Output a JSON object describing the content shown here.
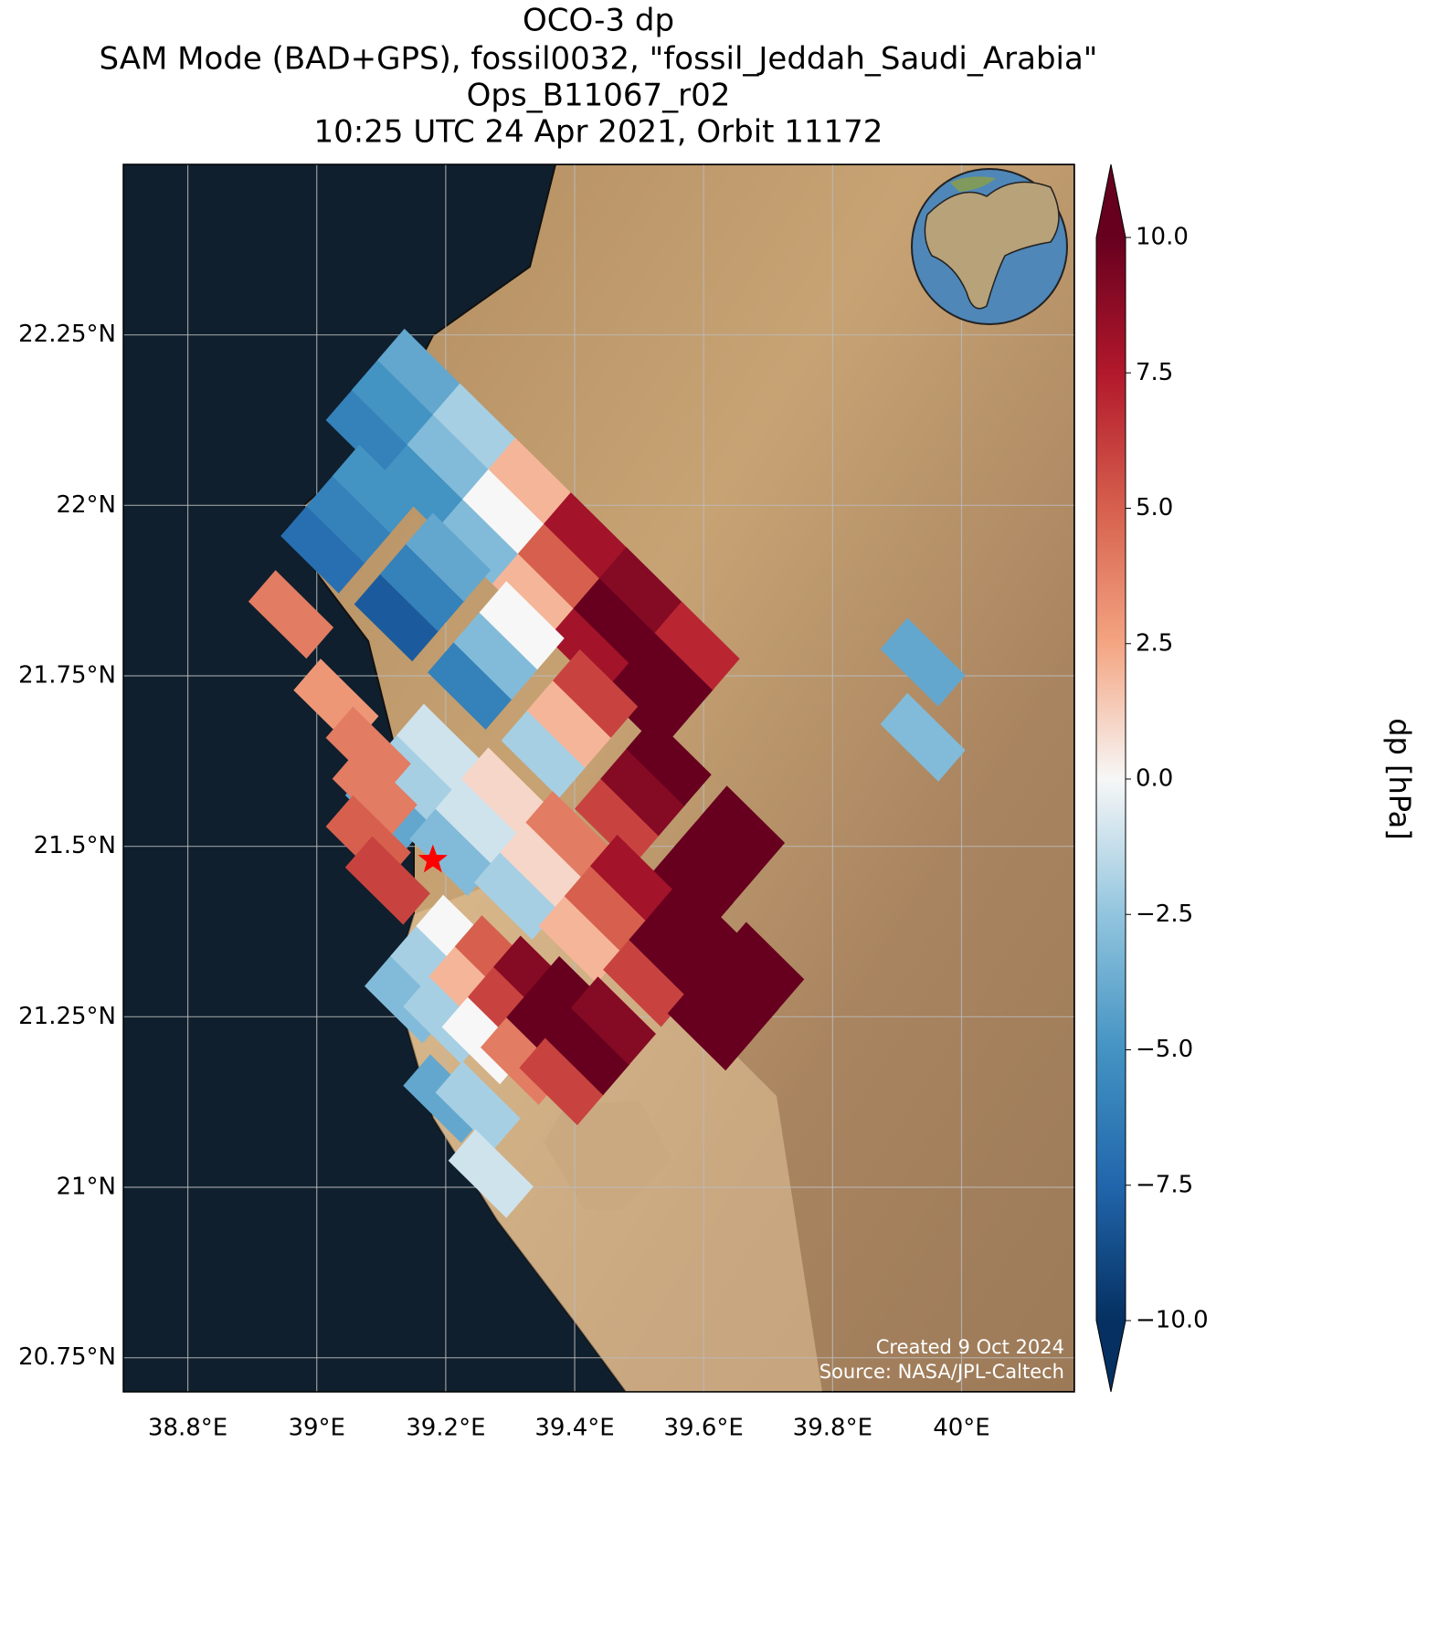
{
  "chart_data": {
    "type": "map",
    "title": [
      "OCO-3 dp",
      "SAM Mode (BAD+GPS), fossil0032, \"fossil_Jeddah_Saudi_Arabia\"",
      "Ops_B11067_r02",
      "10:25 UTC 24 Apr 2021, Orbit 11172"
    ],
    "xlim": [
      38.7,
      40.175
    ],
    "ylim": [
      20.7,
      22.5
    ],
    "grid": true,
    "xticks": [
      {
        "value": 38.8,
        "label": "38.8°E"
      },
      {
        "value": 39,
        "label": "39°E"
      },
      {
        "value": 39.2,
        "label": "39.2°E"
      },
      {
        "value": 39.4,
        "label": "39.4°E"
      },
      {
        "value": 39.6,
        "label": "39.6°E"
      },
      {
        "value": 39.8,
        "label": "39.8°E"
      },
      {
        "value": 40,
        "label": "40°E"
      }
    ],
    "yticks": [
      {
        "value": 20.75,
        "label": "20.75°N"
      },
      {
        "value": 21,
        "label": "21°N"
      },
      {
        "value": 21.25,
        "label": "21.25°N"
      },
      {
        "value": 21.5,
        "label": "21.5°N"
      },
      {
        "value": 21.75,
        "label": "21.75°N"
      },
      {
        "value": 22,
        "label": "22°N"
      },
      {
        "value": 22.25,
        "label": "22.25°N"
      }
    ],
    "colorbar": {
      "label": "dp [hPa]",
      "clim": [
        -10,
        10
      ],
      "colors": [
        "#053061",
        "#2166ac",
        "#4393c3",
        "#92c5de",
        "#f7f7f7",
        "#f4a582",
        "#d6604d",
        "#b2182b",
        "#67001f"
      ],
      "ticks": [
        {
          "value": -10,
          "label": "−10.0"
        },
        {
          "value": -7.5,
          "label": "−7.5"
        },
        {
          "value": -5,
          "label": "−5.0"
        },
        {
          "value": -2.5,
          "label": "−2.5"
        },
        {
          "value": 0,
          "label": "0.0"
        },
        {
          "value": 2.5,
          "label": "2.5"
        },
        {
          "value": 5,
          "label": "5.0"
        },
        {
          "value": 7.5,
          "label": "7.5"
        },
        {
          "value": 10,
          "label": "10.0"
        }
      ]
    },
    "site": {
      "lon": 39.18,
      "lat": 21.48
    },
    "footprints": [
      {
        "lon": 39.08,
        "lat": 22.106,
        "dp": -6
      },
      {
        "lon": 39.12,
        "lat": 22.15,
        "dp": -5
      },
      {
        "lon": 39.16,
        "lat": 22.194,
        "dp": -4
      },
      {
        "lon": 39.166,
        "lat": 22.026,
        "dp": -5
      },
      {
        "lon": 39.206,
        "lat": 22.07,
        "dp": -3
      },
      {
        "lon": 39.246,
        "lat": 22.114,
        "dp": -2
      },
      {
        "lon": 39.252,
        "lat": 21.946,
        "dp": -3
      },
      {
        "lon": 39.292,
        "lat": 21.99,
        "dp": 0
      },
      {
        "lon": 39.332,
        "lat": 22.034,
        "dp": 2
      },
      {
        "lon": 39.338,
        "lat": 21.866,
        "dp": 2
      },
      {
        "lon": 39.378,
        "lat": 21.91,
        "dp": 5
      },
      {
        "lon": 39.418,
        "lat": 21.954,
        "dp": 8
      },
      {
        "lon": 39.424,
        "lat": 21.786,
        "dp": 8
      },
      {
        "lon": 39.464,
        "lat": 21.83,
        "dp": 10
      },
      {
        "lon": 39.504,
        "lat": 21.874,
        "dp": 9
      },
      {
        "lon": 39.51,
        "lat": 21.706,
        "dp": 10
      },
      {
        "lon": 39.55,
        "lat": 21.75,
        "dp": 10
      },
      {
        "lon": 39.59,
        "lat": 21.794,
        "dp": 7
      },
      {
        "lon": 39.01,
        "lat": 21.936,
        "dp": -7
      },
      {
        "lon": 39.05,
        "lat": 21.98,
        "dp": -6
      },
      {
        "lon": 39.09,
        "lat": 22.024,
        "dp": -5
      },
      {
        "lon": 39.124,
        "lat": 21.836,
        "dp": -8
      },
      {
        "lon": 39.164,
        "lat": 21.88,
        "dp": -6
      },
      {
        "lon": 39.204,
        "lat": 21.924,
        "dp": -4
      },
      {
        "lon": 39.238,
        "lat": 21.736,
        "dp": -6
      },
      {
        "lon": 39.278,
        "lat": 21.78,
        "dp": -3
      },
      {
        "lon": 39.318,
        "lat": 21.824,
        "dp": 0
      },
      {
        "lon": 39.352,
        "lat": 21.636,
        "dp": -2
      },
      {
        "lon": 39.392,
        "lat": 21.68,
        "dp": 2
      },
      {
        "lon": 39.432,
        "lat": 21.724,
        "dp": 6
      },
      {
        "lon": 39.466,
        "lat": 21.536,
        "dp": 6
      },
      {
        "lon": 39.506,
        "lat": 21.58,
        "dp": 9
      },
      {
        "lon": 39.546,
        "lat": 21.624,
        "dp": 10
      },
      {
        "lon": 39.58,
        "lat": 21.436,
        "dp": 10
      },
      {
        "lon": 39.62,
        "lat": 21.48,
        "dp": 10
      },
      {
        "lon": 39.66,
        "lat": 21.524,
        "dp": 10
      },
      {
        "lon": 39.11,
        "lat": 21.556,
        "dp": -4
      },
      {
        "lon": 39.15,
        "lat": 21.6,
        "dp": -2
      },
      {
        "lon": 39.19,
        "lat": 21.644,
        "dp": -1
      },
      {
        "lon": 39.21,
        "lat": 21.492,
        "dp": -3
      },
      {
        "lon": 39.25,
        "lat": 21.536,
        "dp": -1
      },
      {
        "lon": 39.29,
        "lat": 21.58,
        "dp": 1
      },
      {
        "lon": 39.31,
        "lat": 21.428,
        "dp": -2
      },
      {
        "lon": 39.35,
        "lat": 21.472,
        "dp": 1
      },
      {
        "lon": 39.39,
        "lat": 21.516,
        "dp": 4
      },
      {
        "lon": 39.41,
        "lat": 21.364,
        "dp": 2
      },
      {
        "lon": 39.45,
        "lat": 21.408,
        "dp": 5
      },
      {
        "lon": 39.49,
        "lat": 21.452,
        "dp": 8
      },
      {
        "lon": 39.51,
        "lat": 21.3,
        "dp": 6
      },
      {
        "lon": 39.55,
        "lat": 21.344,
        "dp": 10
      },
      {
        "lon": 39.59,
        "lat": 21.388,
        "dp": 10
      },
      {
        "lon": 39.61,
        "lat": 21.236,
        "dp": 10
      },
      {
        "lon": 39.65,
        "lat": 21.28,
        "dp": 10
      },
      {
        "lon": 39.69,
        "lat": 21.324,
        "dp": 10
      },
      {
        "lon": 39.14,
        "lat": 21.276,
        "dp": -3
      },
      {
        "lon": 39.18,
        "lat": 21.32,
        "dp": -2
      },
      {
        "lon": 39.22,
        "lat": 21.364,
        "dp": 0
      },
      {
        "lon": 39.2,
        "lat": 21.246,
        "dp": -2
      },
      {
        "lon": 39.24,
        "lat": 21.29,
        "dp": 2
      },
      {
        "lon": 39.28,
        "lat": 21.334,
        "dp": 5
      },
      {
        "lon": 39.26,
        "lat": 21.216,
        "dp": 0
      },
      {
        "lon": 39.3,
        "lat": 21.26,
        "dp": 6
      },
      {
        "lon": 39.34,
        "lat": 21.304,
        "dp": 9
      },
      {
        "lon": 39.32,
        "lat": 21.186,
        "dp": 4
      },
      {
        "lon": 39.36,
        "lat": 21.23,
        "dp": 10
      },
      {
        "lon": 39.4,
        "lat": 21.274,
        "dp": 10
      },
      {
        "lon": 39.38,
        "lat": 21.156,
        "dp": 6
      },
      {
        "lon": 39.42,
        "lat": 21.2,
        "dp": 10
      },
      {
        "lon": 39.46,
        "lat": 21.244,
        "dp": 9
      },
      {
        "lon": 39.2,
        "lat": 21.13,
        "dp": -4
      },
      {
        "lon": 39.25,
        "lat": 21.12,
        "dp": -2
      },
      {
        "lon": 39.27,
        "lat": 21.02,
        "dp": -1
      },
      {
        "lon": 38.96,
        "lat": 21.84,
        "dp": 4
      },
      {
        "lon": 39.03,
        "lat": 21.71,
        "dp": 3
      },
      {
        "lon": 39.08,
        "lat": 21.64,
        "dp": 4
      },
      {
        "lon": 39.09,
        "lat": 21.58,
        "dp": 4
      },
      {
        "lon": 39.08,
        "lat": 21.51,
        "dp": 5
      },
      {
        "lon": 39.11,
        "lat": 21.45,
        "dp": 6
      },
      {
        "lon": 39.94,
        "lat": 21.77,
        "dp": -4
      },
      {
        "lon": 39.94,
        "lat": 21.66,
        "dp": -3
      }
    ],
    "credits": [
      "Created 9 Oct 2024",
      "Source: NASA/JPL-Caltech"
    ]
  }
}
